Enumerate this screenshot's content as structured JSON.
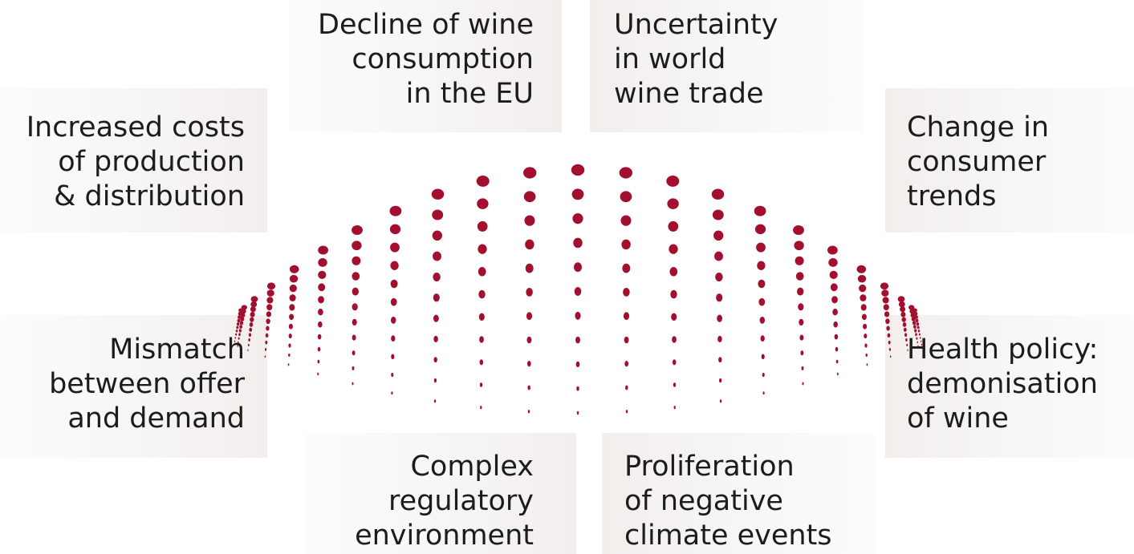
{
  "boxes": [
    {
      "lines": [
        "Decline of wine",
        "consumption",
        "in the EU"
      ]
    },
    {
      "lines": [
        "Uncertainty",
        "in world",
        "wine trade"
      ]
    },
    {
      "lines": [
        "Increased costs",
        "of production",
        "& distribution"
      ]
    },
    {
      "lines": [
        "Change in",
        "consumer",
        "trends"
      ]
    },
    {
      "lines": [
        "Mismatch",
        "between offer",
        "and demand"
      ]
    },
    {
      "lines": [
        "Health policy:",
        "demonisation",
        "of wine"
      ]
    },
    {
      "lines": [
        "Complex",
        "regulatory",
        "environment"
      ]
    },
    {
      "lines": [
        "Proliferation",
        "of negative",
        "climate events"
      ]
    }
  ]
}
